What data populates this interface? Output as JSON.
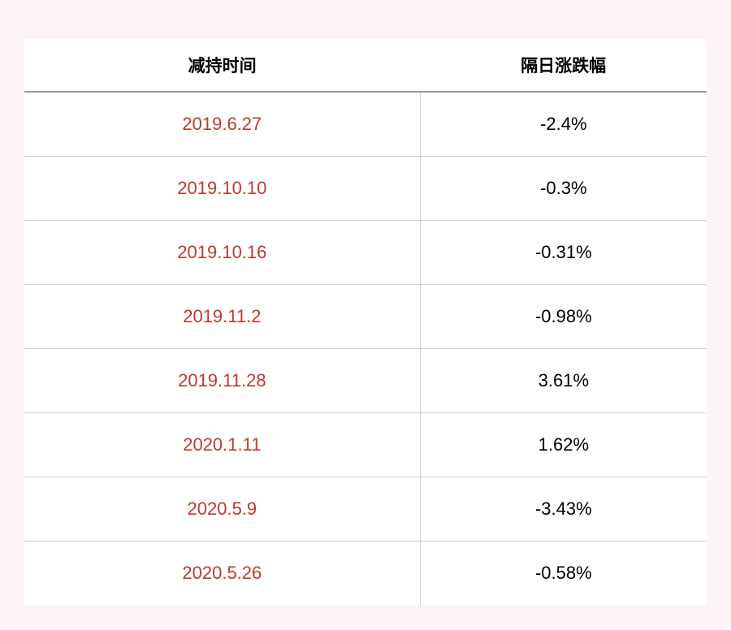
{
  "table": {
    "columns": [
      "减持时间",
      "隔日涨跌幅"
    ],
    "rows": [
      [
        "2019.6.27",
        "-2.4%"
      ],
      [
        "2019.10.10",
        "-0.3%"
      ],
      [
        "2019.10.16",
        "-0.31%"
      ],
      [
        "2019.11.2",
        "-0.98%"
      ],
      [
        "2019.11.28",
        "3.61%"
      ],
      [
        "2020.1.11",
        "1.62%"
      ],
      [
        "2020.5.9",
        "-3.43%"
      ],
      [
        "2020.5.26",
        "-0.58%"
      ]
    ],
    "header_bg": "#ffffff",
    "header_text_color": "#000000",
    "header_fontsize": 21,
    "header_border_color": "#999999",
    "cell_fontsize": 22,
    "date_color": "#c0392b",
    "value_color": "#000000",
    "row_border_color": "#d0d0d0",
    "column_divider_color": "#d0d0d0",
    "background_color": "#fdf5f5",
    "table_bg": "#ffffff",
    "col_widths": [
      "58%",
      "42%"
    ]
  }
}
